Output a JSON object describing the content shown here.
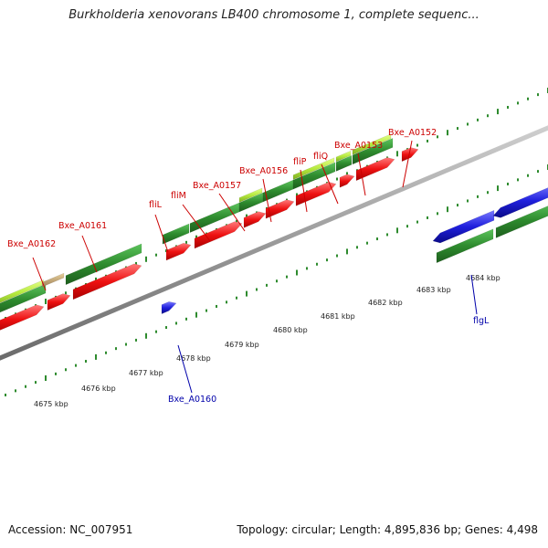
{
  "title": "Burkholderia xenovorans LB400 chromosome 1, complete sequenc...",
  "footer": {
    "accession": "Accession: NC_007951",
    "summary": "Topology: circular; Length: 4,895,836 bp; Genes: 4,498"
  },
  "colors": {
    "forward_cds": "#2e8b2e",
    "forward_highlight": "#b5ea3e",
    "reverse_cds": "#ee1111",
    "other_gene": "#1f1fdd",
    "red_label": "#cc0000",
    "blue_label": "#0000aa",
    "tick": "#2e8b2e",
    "backbone": "#9a9a9a"
  },
  "scale_ticks": [
    "4675 kbp",
    "4676 kbp",
    "4677 kbp",
    "4678 kbp",
    "4679 kbp",
    "4680 kbp",
    "4681 kbp",
    "4682 kbp",
    "4683 kbp",
    "4684 kbp"
  ],
  "gene_labels_top": [
    "Bxe_A0162",
    "Bxe_A0161",
    "fliL",
    "fliM",
    "Bxe_A0157",
    "Bxe_A0156",
    "fliP",
    "fliQ",
    "Bxe_A0153",
    "Bxe_A0152"
  ],
  "gene_labels_bottom": [
    "Bxe_A0160",
    "flgL"
  ]
}
